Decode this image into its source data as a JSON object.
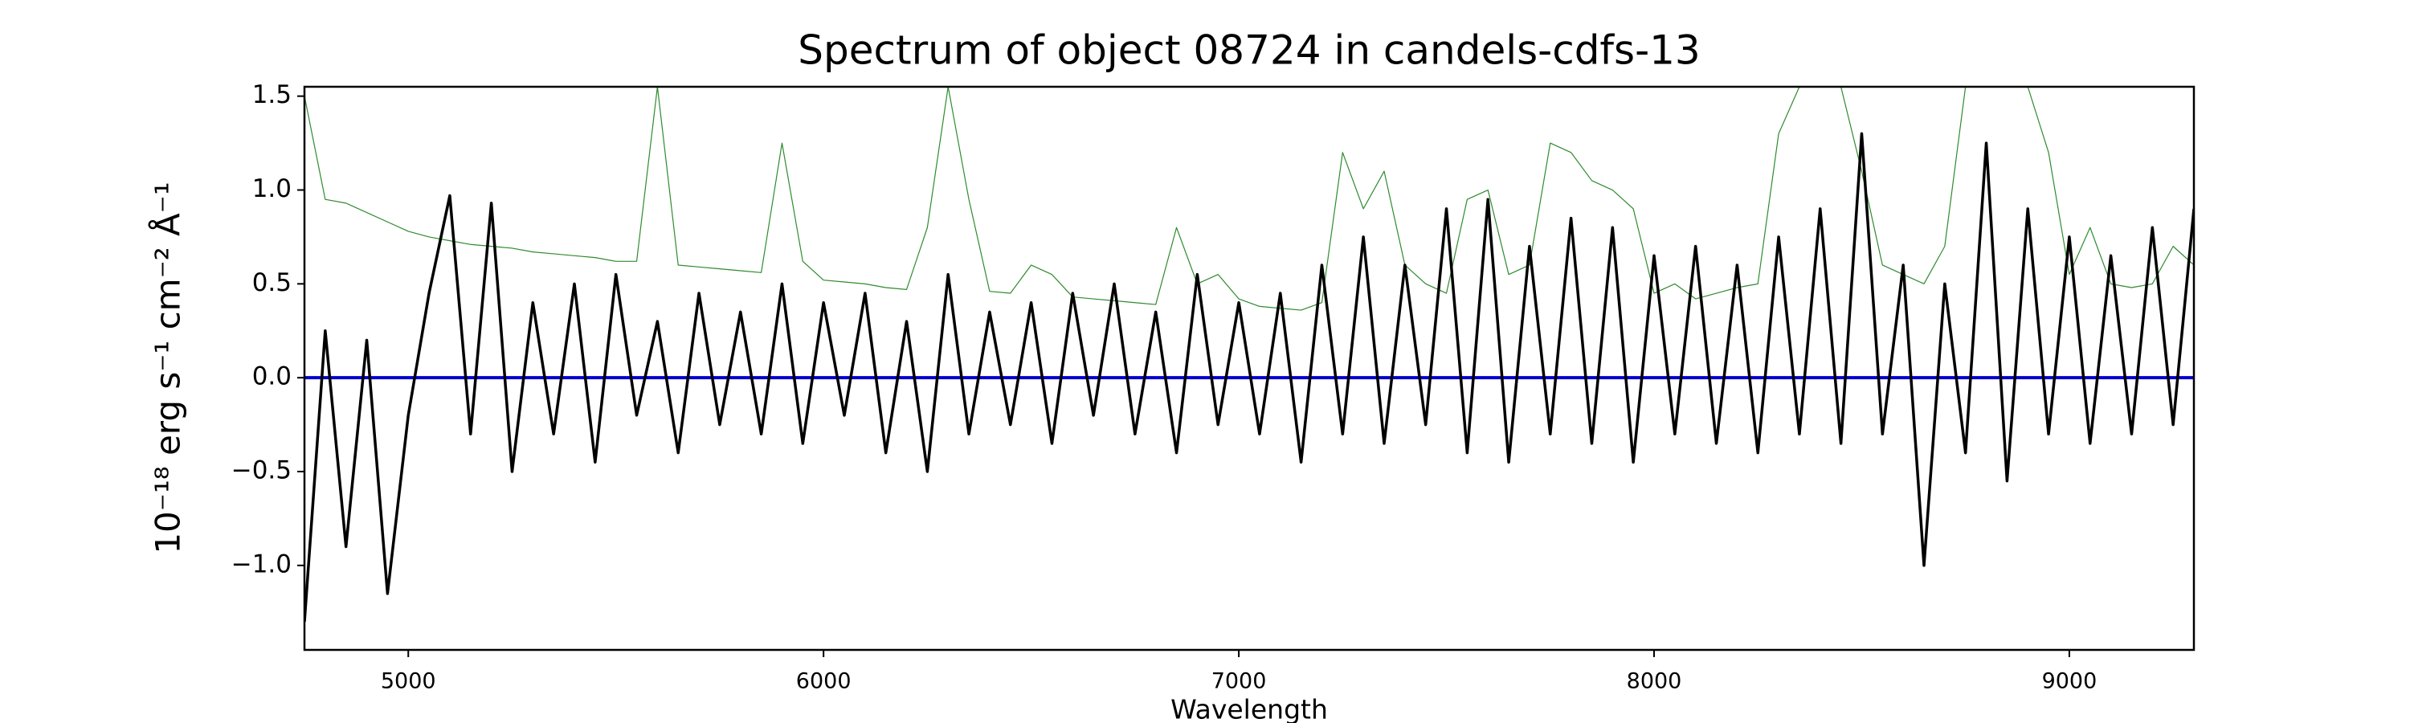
{
  "chart_data": {
    "type": "line",
    "title": "Spectrum of object 08724 in candels-cdfs-13",
    "x_label": "Wavelength",
    "y_label": "10⁻¹⁸ erg s⁻¹ cm⁻² Å⁻¹",
    "x": [
      4750,
      4800,
      4850,
      4900,
      4950,
      5000,
      5050,
      5100,
      5150,
      5200,
      5250,
      5300,
      5350,
      5400,
      5450,
      5500,
      5550,
      5600,
      5650,
      5700,
      5750,
      5800,
      5850,
      5900,
      5950,
      6000,
      6050,
      6100,
      6150,
      6200,
      6250,
      6300,
      6350,
      6400,
      6450,
      6500,
      6550,
      6600,
      6650,
      6700,
      6750,
      6800,
      6850,
      6900,
      6950,
      7000,
      7050,
      7100,
      7150,
      7200,
      7250,
      7300,
      7350,
      7400,
      7450,
      7500,
      7550,
      7600,
      7650,
      7700,
      7750,
      7800,
      7850,
      7900,
      7950,
      8000,
      8050,
      8100,
      8150,
      8200,
      8250,
      8300,
      8350,
      8400,
      8450,
      8500,
      8550,
      8600,
      8650,
      8700,
      8750,
      8800,
      8850,
      8900,
      8950,
      9000,
      9050,
      9100,
      9150,
      9200,
      9250,
      9300
    ],
    "series": [
      {
        "color": "#2e8b2e",
        "width": 1.2,
        "values": [
          1.5,
          0.95,
          0.93,
          0.88,
          0.83,
          0.78,
          0.75,
          0.73,
          0.71,
          0.7,
          0.69,
          0.67,
          0.66,
          0.65,
          0.64,
          0.62,
          0.62,
          1.55,
          0.6,
          0.59,
          0.58,
          0.57,
          0.56,
          1.25,
          0.62,
          0.52,
          0.51,
          0.5,
          0.48,
          0.47,
          0.8,
          1.55,
          0.95,
          0.46,
          0.45,
          0.6,
          0.55,
          0.43,
          0.42,
          0.41,
          0.4,
          0.39,
          0.8,
          0.5,
          0.55,
          0.42,
          0.38,
          0.37,
          0.36,
          0.4,
          1.2,
          0.9,
          1.1,
          0.6,
          0.5,
          0.45,
          0.95,
          1.0,
          0.55,
          0.6,
          1.25,
          1.2,
          1.05,
          1.0,
          0.9,
          0.45,
          0.5,
          0.42,
          0.45,
          0.48,
          0.5,
          1.3,
          1.55,
          1.55,
          1.55,
          1.1,
          0.6,
          0.55,
          0.5,
          0.7,
          1.55,
          1.55,
          1.55,
          1.55,
          1.2,
          0.55,
          0.8,
          0.5,
          0.48,
          0.5,
          0.7,
          0.6
        ]
      },
      {
        "color": "#0000cc",
        "width": 4,
        "values": [
          0,
          0,
          0,
          0,
          0,
          0,
          0,
          0,
          0,
          0,
          0,
          0,
          0,
          0,
          0,
          0,
          0,
          0,
          0,
          0,
          0,
          0,
          0,
          0,
          0,
          0,
          0,
          0,
          0,
          0,
          0,
          0,
          0,
          0,
          0,
          0,
          0,
          0,
          0,
          0,
          0,
          0,
          0,
          0,
          0,
          0,
          0,
          0,
          0,
          0,
          0,
          0,
          0,
          0,
          0,
          0,
          0,
          0,
          0,
          0,
          0,
          0,
          0,
          0,
          0,
          0,
          0,
          0,
          0,
          0,
          0,
          0,
          0,
          0,
          0,
          0,
          0,
          0,
          0,
          0,
          0,
          0,
          0,
          0,
          0,
          0,
          0,
          0,
          0,
          0,
          0,
          0
        ]
      },
      {
        "color": "#000000",
        "width": 3.5,
        "values": [
          -1.3,
          0.25,
          -0.9,
          0.2,
          -1.15,
          -0.2,
          0.45,
          0.97,
          -0.3,
          0.93,
          -0.5,
          0.4,
          -0.3,
          0.5,
          -0.45,
          0.55,
          -0.2,
          0.3,
          -0.4,
          0.45,
          -0.25,
          0.35,
          -0.3,
          0.5,
          -0.35,
          0.4,
          -0.2,
          0.45,
          -0.4,
          0.3,
          -0.5,
          0.55,
          -0.3,
          0.35,
          -0.25,
          0.4,
          -0.35,
          0.45,
          -0.2,
          0.5,
          -0.3,
          0.35,
          -0.4,
          0.55,
          -0.25,
          0.4,
          -0.3,
          0.45,
          -0.45,
          0.6,
          -0.3,
          0.75,
          -0.35,
          0.6,
          -0.25,
          0.9,
          -0.4,
          0.95,
          -0.45,
          0.7,
          -0.3,
          0.85,
          -0.35,
          0.8,
          -0.45,
          0.65,
          -0.3,
          0.7,
          -0.35,
          0.6,
          -0.4,
          0.75,
          -0.3,
          0.9,
          -0.35,
          1.3,
          -0.3,
          0.6,
          -1.0,
          0.5,
          -0.4,
          1.25,
          -0.55,
          0.9,
          -0.3,
          0.75,
          -0.35,
          0.65,
          -0.3,
          0.8,
          -0.25,
          0.9
        ]
      }
    ],
    "xlim": [
      4750,
      9300
    ],
    "ylim": [
      -1.45,
      1.55
    ],
    "xticks": [
      5000,
      6000,
      7000,
      8000,
      9000
    ],
    "yticks": [
      {
        "value": -1.0,
        "label": "−1.0"
      },
      {
        "value": -0.5,
        "label": "−0.5"
      },
      {
        "value": 0.0,
        "label": "0.0"
      },
      {
        "value": 0.5,
        "label": "0.5"
      },
      {
        "value": 1.0,
        "label": "1.0"
      },
      {
        "value": 1.5,
        "label": "1.5"
      }
    ]
  }
}
